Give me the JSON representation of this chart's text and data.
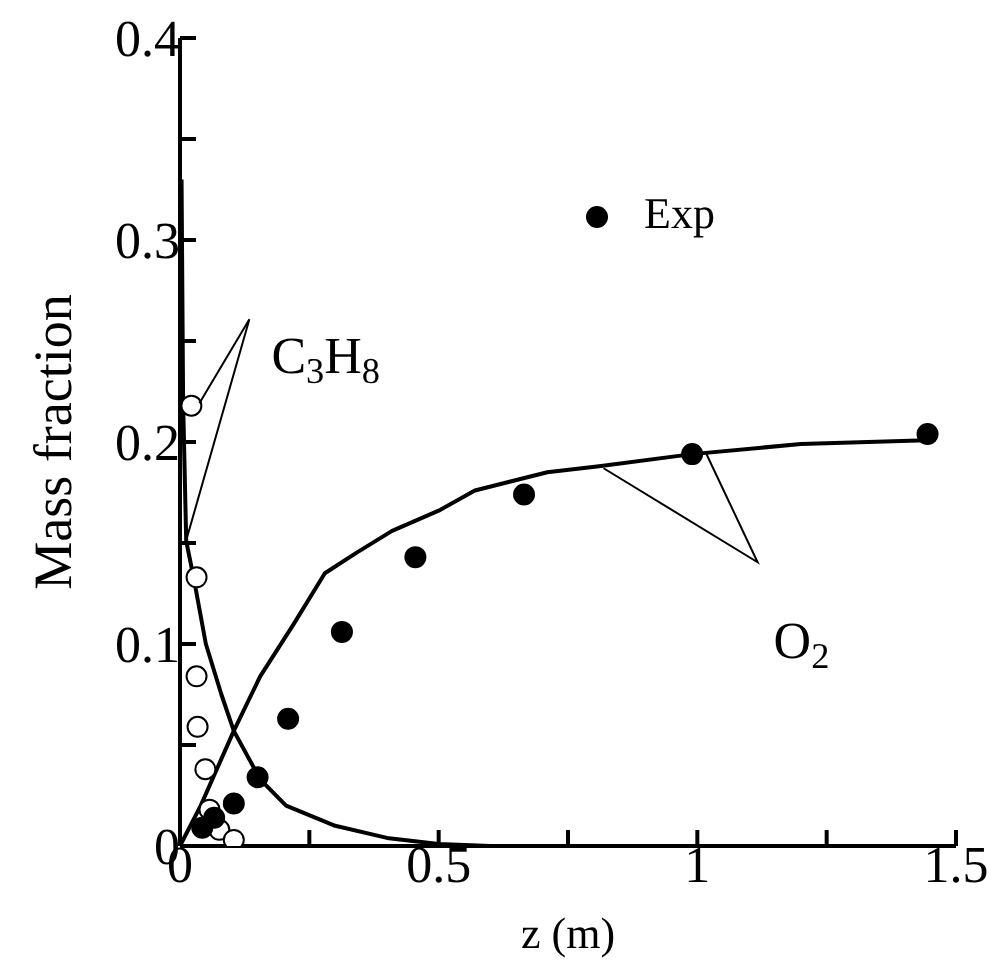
{
  "chart_data": {
    "type": "line",
    "xlabel": "z (m)",
    "ylabel": "Mass fraction",
    "xlim": [
      0,
      1.5
    ],
    "xticks": [
      0,
      {
        "value": 0.25,
        "label": null
      },
      0.5,
      {
        "value": 0.75,
        "label": null
      },
      1,
      {
        "value": 1.25,
        "label": null
      },
      1.5
    ],
    "ylim": [
      0,
      0.4
    ],
    "yticks": [
      0,
      {
        "value": 0.05,
        "label": null
      },
      0.1,
      {
        "value": 0.15,
        "label": null
      },
      0.2,
      {
        "value": 0.25,
        "label": null
      },
      0.3,
      {
        "value": 0.35,
        "label": null
      },
      0.4
    ],
    "grid": false,
    "legend": "top right",
    "annotations": [
      {
        "text": "C$_{3}$H$_{8}$",
        "x": 0.022,
        "y": 0.218
      },
      "O$_{2}$"
    ],
    "series": [
      {
        "type": "line",
        "color": "#000000",
        "marker": "none",
        "x": [
          0.003,
          0.006,
          0.012,
          0.027,
          0.05,
          0.08,
          0.104,
          0.155,
          0.205,
          0.3,
          0.4,
          0.5,
          0.6
        ],
        "values": [
          0.33,
          0.22,
          0.151,
          0.132,
          0.1,
          0.075,
          0.057,
          0.033,
          0.02,
          0.01,
          0.004,
          0.001,
          0
        ]
      },
      {
        "type": "line",
        "color": "#000000",
        "marker": "none",
        "x": [
          0,
          0.04,
          0.104,
          0.155,
          0.22,
          0.28,
          0.34,
          0.41,
          0.5,
          0.57,
          0.71,
          0.81,
          0.99,
          1.2,
          1.46
        ],
        "values": [
          0,
          0.02,
          0.057,
          0.084,
          0.11,
          0.135,
          0.145,
          0.156,
          0.166,
          0.176,
          0.185,
          0.188,
          0.194,
          0.199,
          0.201
        ]
      },
      {
        "type": "scatter",
        "name": "Exp",
        "color": "#000000",
        "marker": "circle",
        "x": [
          0.043,
          0.066,
          0.104,
          0.15,
          0.209,
          0.313,
          0.455,
          0.665,
          0.99,
          1.445
        ],
        "values": [
          0.009,
          0.014,
          0.021,
          0.034,
          0.063,
          0.106,
          0.143,
          0.174,
          0.194,
          0.204
        ]
      },
      {
        "type": "scatter",
        "color": "#ffffff",
        "marker": "circle",
        "x": [
          0.022,
          0.032,
          0.032,
          0.034,
          0.049,
          0.057,
          0.076,
          0.104
        ],
        "values": [
          0.218,
          0.133,
          0.084,
          0.059,
          0.038,
          0.018,
          0.008,
          0.003
        ]
      }
    ]
  }
}
